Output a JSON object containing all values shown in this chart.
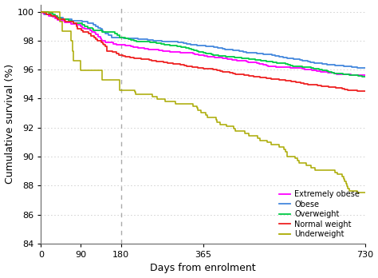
{
  "xlabel": "Days from enrolment",
  "ylabel": "Cumulative survival (%)",
  "xlim": [
    0,
    730
  ],
  "ylim": [
    84,
    100.5
  ],
  "yticks": [
    84,
    86,
    88,
    90,
    92,
    94,
    96,
    98,
    100
  ],
  "xticks": [
    0,
    90,
    180,
    365,
    730
  ],
  "vline_x": 180,
  "background_color": "#ffffff",
  "grid_color": "#cccccc",
  "groups": [
    {
      "label": "Extremely obese",
      "color": "#ff00ff",
      "end_180": 97.7,
      "end_730": 95.6,
      "n_events1": 25,
      "n_events2": 180,
      "seed": 10
    },
    {
      "label": "Obese",
      "color": "#4488dd",
      "end_180": 98.2,
      "end_730": 96.1,
      "n_events1": 18,
      "n_events2": 160,
      "seed": 20
    },
    {
      "label": "Overweight",
      "color": "#00cc44",
      "end_180": 98.2,
      "end_730": 95.5,
      "n_events1": 18,
      "n_events2": 190,
      "seed": 30
    },
    {
      "label": "Normal weight",
      "color": "#ee2222",
      "end_180": 97.0,
      "end_730": 94.5,
      "n_events1": 30,
      "n_events2": 220,
      "seed": 40
    },
    {
      "label": "Underweight",
      "color": "#aaaa00",
      "end_180": 94.6,
      "end_730": 87.5,
      "n_events1": 8,
      "n_events2": 45,
      "seed": 50
    }
  ]
}
